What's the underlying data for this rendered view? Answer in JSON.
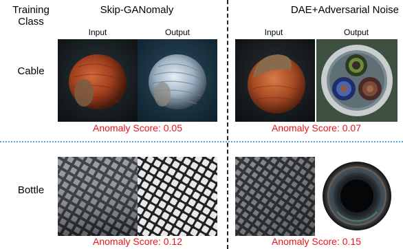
{
  "header": {
    "training_class_line1": "Training",
    "training_class_line2": "Class",
    "method_left": "Skip-GANomaly",
    "method_right": "DAE+Adversarial Noise"
  },
  "subheaders": {
    "left_input": "Input",
    "left_output": "Output",
    "right_input": "Input",
    "right_output": "Output"
  },
  "rows": [
    {
      "label": "Cable",
      "left_score": "Anomaly Score: 0.05",
      "right_score": "Anomaly Score: 0.07"
    },
    {
      "label": "Bottle",
      "left_score": "Anomaly Score: 0.12",
      "right_score": "Anomaly Score: 0.15"
    }
  ],
  "colors": {
    "score_text": "#e8141b",
    "row_divider": "#5aa3d6",
    "column_divider": "#222222"
  }
}
